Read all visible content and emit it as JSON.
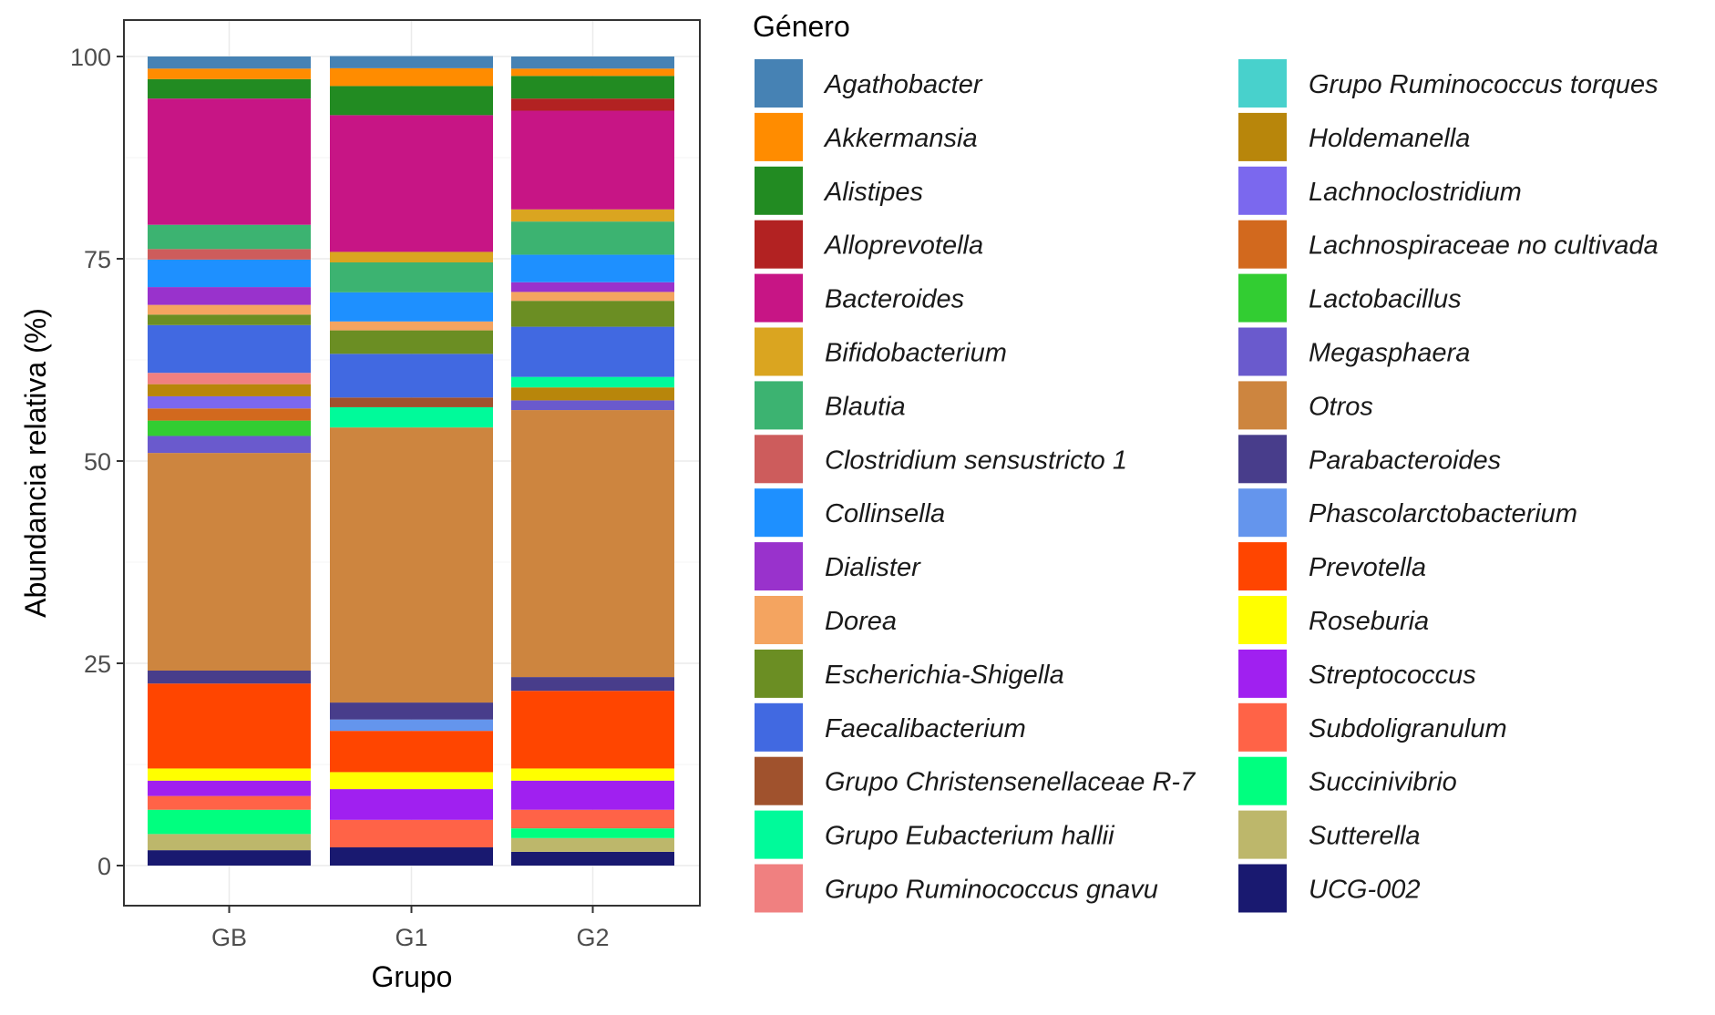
{
  "chart_data": {
    "type": "bar",
    "stacked": true,
    "xlabel": "Grupo",
    "ylabel": "Abundancia relativa (%)",
    "ylim": [
      0,
      100
    ],
    "yticks": [
      0,
      25,
      50,
      75,
      100
    ],
    "grid": true,
    "categories": [
      "GB",
      "G1",
      "G2"
    ],
    "legend_title": "Género",
    "legend_placement": "right",
    "series": [
      {
        "name": "Agathobacter",
        "color": "#4682B4",
        "values": [
          1.5,
          1.5,
          1.5
        ]
      },
      {
        "name": "Akkermansia",
        "color": "#FF8C00",
        "values": [
          1.3,
          2.2,
          0.9
        ]
      },
      {
        "name": "Alistipes",
        "color": "#228B22",
        "values": [
          2.4,
          3.6,
          2.8
        ]
      },
      {
        "name": "Alloprevotella",
        "color": "#B22222",
        "values": [
          0,
          0,
          1.5
        ]
      },
      {
        "name": "Bacteroides",
        "color": "#C71585",
        "values": [
          15.6,
          16.9,
          12.2
        ]
      },
      {
        "name": "Bifidobacterium",
        "color": "#DAA520",
        "values": [
          0,
          1.3,
          1.5
        ]
      },
      {
        "name": "Blautia",
        "color": "#3CB371",
        "values": [
          3.0,
          3.7,
          4.1
        ]
      },
      {
        "name": "Clostridium sensustricto 1",
        "color": "#CD5C5C",
        "values": [
          1.3,
          0,
          0
        ]
      },
      {
        "name": "Collinsella",
        "color": "#1E90FF",
        "values": [
          3.4,
          3.6,
          3.4
        ]
      },
      {
        "name": "Dialister",
        "color": "#9932CC",
        "values": [
          2.2,
          0,
          1.2
        ]
      },
      {
        "name": "Dorea",
        "color": "#F4A460",
        "values": [
          1.2,
          1.1,
          1.1
        ]
      },
      {
        "name": "Escherichia-Shigella",
        "color": "#6B8E23",
        "values": [
          1.3,
          2.9,
          3.2
        ]
      },
      {
        "name": "Faecalibacterium",
        "color": "#4169E1",
        "values": [
          5.9,
          5.4,
          6.2
        ]
      },
      {
        "name": "Grupo Christensenellaceae R-7",
        "color": "#A0522D",
        "values": [
          0,
          1.2,
          0
        ]
      },
      {
        "name": "Grupo Eubacterium hallii",
        "color": "#00FA9A",
        "values": [
          0,
          2.5,
          1.3
        ]
      },
      {
        "name": "Grupo Ruminococcus gnavu",
        "color": "#F08080",
        "values": [
          1.4,
          0,
          0
        ]
      },
      {
        "name": "Grupo Ruminococcus torques",
        "color": "#48D1CC",
        "values": [
          0,
          0,
          0
        ]
      },
      {
        "name": "Holdemanella",
        "color": "#B8860B",
        "values": [
          1.5,
          0,
          1.6
        ]
      },
      {
        "name": "Lachnoclostridium",
        "color": "#7B68EE",
        "values": [
          1.5,
          0,
          0
        ]
      },
      {
        "name": "Lachnospiraceae no cultivada",
        "color": "#D2691E",
        "values": [
          1.5,
          0,
          0
        ]
      },
      {
        "name": "Lactobacillus",
        "color": "#32CD32",
        "values": [
          1.9,
          0,
          0
        ]
      },
      {
        "name": "Megasphaera",
        "color": "#6A5ACD",
        "values": [
          2.1,
          0,
          1.2
        ]
      },
      {
        "name": "Otros",
        "color": "#CD853F",
        "values": [
          26.9,
          34.0,
          33.0
        ]
      },
      {
        "name": "Parabacteroides",
        "color": "#483D8B",
        "values": [
          1.6,
          2.1,
          1.7
        ]
      },
      {
        "name": "Phascolarctobacterium",
        "color": "#6495ED",
        "values": [
          0,
          1.4,
          0
        ]
      },
      {
        "name": "Prevotella",
        "color": "#FF4500",
        "values": [
          10.5,
          5.1,
          9.6
        ]
      },
      {
        "name": "Roseburia",
        "color": "#FFFF00",
        "values": [
          1.5,
          2.1,
          1.5
        ]
      },
      {
        "name": "Streptococcus",
        "color": "#A020F0",
        "values": [
          1.9,
          3.8,
          3.6
        ]
      },
      {
        "name": "Subdoligranulum",
        "color": "#FF6347",
        "values": [
          1.7,
          3.4,
          2.3
        ]
      },
      {
        "name": "Succinivibrio",
        "color": "#00FF7F",
        "values": [
          3.0,
          0,
          1.2
        ]
      },
      {
        "name": "Sutterella",
        "color": "#BDB76B",
        "values": [
          2.0,
          0,
          1.7
        ]
      },
      {
        "name": "UCG-002",
        "color": "#191970",
        "values": [
          1.9,
          2.25,
          1.7
        ]
      }
    ]
  }
}
